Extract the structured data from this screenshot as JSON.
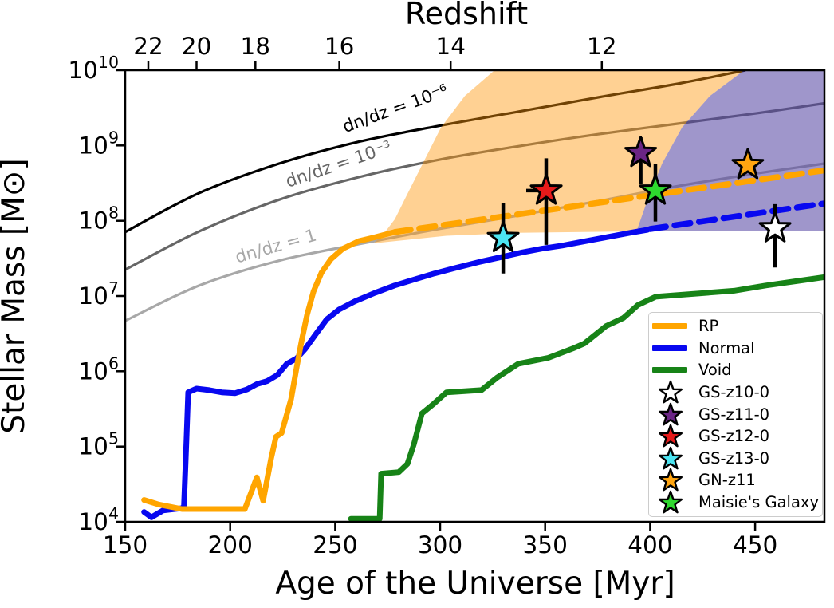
{
  "chart_data": {
    "type": "line",
    "xlabel": "Age of the Universe [Myr]",
    "ylabel": "Stellar Mass [M⊙]",
    "xlim": [
      150,
      483
    ],
    "ylog_lim": [
      4,
      10
    ],
    "x_ticks": [
      150,
      200,
      250,
      300,
      350,
      400,
      450
    ],
    "y_tick_exponents": [
      "4",
      "5",
      "6",
      "7",
      "8",
      "9",
      "10"
    ],
    "top_axis": {
      "label": "Redshift",
      "ticks": [
        {
          "z": "22",
          "age": 161
        },
        {
          "z": "20",
          "age": 184
        },
        {
          "z": "18",
          "age": 212
        },
        {
          "z": "16",
          "age": 252
        },
        {
          "z": "14",
          "age": 305
        },
        {
          "z": "12",
          "age": 377
        }
      ]
    },
    "regions": [
      {
        "id": "rp-extrapolation-band",
        "color": "rgba(255,150,10,0.44)",
        "points": [
          [
            268.2,
            7.7
          ],
          [
            272.7,
            7.81
          ],
          [
            278.4,
            8.02
          ],
          [
            284.1,
            8.34
          ],
          [
            291.7,
            8.76
          ],
          [
            300.4,
            9.24
          ],
          [
            311.8,
            9.66
          ],
          [
            325.9,
            10.0
          ],
          [
            444.8,
            10.0
          ],
          [
            428.5,
            9.66
          ],
          [
            415.2,
            9.24
          ],
          [
            405.7,
            8.76
          ],
          [
            398.8,
            8.28
          ],
          [
            393.5,
            7.86
          ],
          [
            337.2,
            7.84
          ],
          [
            303.0,
            7.8
          ]
        ]
      },
      {
        "id": "normal-extrapolation-band",
        "color": "rgba(80,64,160,0.55)",
        "points": [
          [
            444.8,
            10.0
          ],
          [
            483,
            10.0
          ],
          [
            483,
            7.86
          ],
          [
            393.5,
            7.86
          ],
          [
            398.8,
            8.28
          ],
          [
            405.7,
            8.76
          ],
          [
            415.2,
            9.24
          ],
          [
            428.5,
            9.66
          ]
        ]
      }
    ],
    "halo_curves": [
      {
        "id": "dndz-1e-6",
        "label": "dn/dz = 10⁻⁶",
        "color": "#000000",
        "label_age": 279.5,
        "label_logM": 9.42,
        "label_rot": -20,
        "points": [
          [
            150,
            7.85
          ],
          [
            185.3,
            8.37
          ],
          [
            223.3,
            8.76
          ],
          [
            261.3,
            9.05
          ],
          [
            299.2,
            9.26
          ],
          [
            337.2,
            9.45
          ],
          [
            375.2,
            9.64
          ],
          [
            413.1,
            9.82
          ],
          [
            445.4,
            10.0
          ]
        ]
      },
      {
        "id": "dndz-1e-3",
        "label": "dn/dz = 10⁻³",
        "color": "#666666",
        "label_age": 252.5,
        "label_logM": 8.68,
        "label_rot": -19,
        "points": [
          [
            150,
            7.35
          ],
          [
            185.3,
            7.86
          ],
          [
            223.3,
            8.28
          ],
          [
            261.3,
            8.58
          ],
          [
            299.2,
            8.81
          ],
          [
            337.2,
            8.99
          ],
          [
            375.2,
            9.15
          ],
          [
            413.1,
            9.29
          ],
          [
            451.1,
            9.43
          ],
          [
            483,
            9.56
          ]
        ]
      },
      {
        "id": "dndz-1",
        "label": "dn/dz = 1",
        "color": "#A8A8A8",
        "label_age": 222.5,
        "label_logM": 7.59,
        "label_rot": -16,
        "points": [
          [
            150,
            6.67
          ],
          [
            185.3,
            7.14
          ],
          [
            223.3,
            7.47
          ],
          [
            261.3,
            7.69
          ],
          [
            299.2,
            7.89
          ],
          [
            337.2,
            8.07
          ],
          [
            375.2,
            8.26
          ],
          [
            413.1,
            8.46
          ],
          [
            451.1,
            8.63
          ],
          [
            483,
            8.76
          ]
        ]
      }
    ],
    "series": [
      {
        "id": "void",
        "name": "Void",
        "color": "#178317",
        "style": "solid",
        "points": [
          [
            257.5,
            4.04
          ],
          [
            271.2,
            4.04
          ],
          [
            271.9,
            4.64
          ],
          [
            280.3,
            4.66
          ],
          [
            284.4,
            4.77
          ],
          [
            287.5,
            5.03
          ],
          [
            291.3,
            5.44
          ],
          [
            297.0,
            5.57
          ],
          [
            303.0,
            5.72
          ],
          [
            319.7,
            5.75
          ],
          [
            327.3,
            5.92
          ],
          [
            337.2,
            6.1
          ],
          [
            351.6,
            6.18
          ],
          [
            363.8,
            6.31
          ],
          [
            368.7,
            6.37
          ],
          [
            379.0,
            6.6
          ],
          [
            387.3,
            6.71
          ],
          [
            394.2,
            6.88
          ],
          [
            402.6,
            6.99
          ],
          [
            420.9,
            7.03
          ],
          [
            439.9,
            7.07
          ],
          [
            455.1,
            7.14
          ],
          [
            470.3,
            7.2
          ],
          [
            483,
            7.25
          ]
        ]
      },
      {
        "id": "normal",
        "name": "Normal",
        "color": "#0808F0",
        "style": "solid",
        "points": [
          [
            159,
            4.13
          ],
          [
            162.5,
            4.06
          ],
          [
            168,
            4.15
          ],
          [
            177,
            4.18
          ],
          [
            178,
            4.2
          ],
          [
            179.2,
            5.1
          ],
          [
            180,
            5.72
          ],
          [
            184,
            5.77
          ],
          [
            190,
            5.75
          ],
          [
            196,
            5.72
          ],
          [
            202.4,
            5.71
          ],
          [
            208,
            5.76
          ],
          [
            212.7,
            5.83
          ],
          [
            217.6,
            5.87
          ],
          [
            222.5,
            5.95
          ],
          [
            227,
            6.1
          ],
          [
            231.6,
            6.17
          ],
          [
            235.8,
            6.3
          ],
          [
            240.4,
            6.48
          ],
          [
            246,
            6.69
          ],
          [
            251.8,
            6.82
          ],
          [
            259.4,
            6.93
          ],
          [
            268.8,
            7.04
          ],
          [
            278.3,
            7.14
          ],
          [
            287.8,
            7.22
          ],
          [
            297.3,
            7.3
          ],
          [
            306.8,
            7.37
          ],
          [
            318.2,
            7.45
          ],
          [
            329.6,
            7.52
          ],
          [
            339.1,
            7.58
          ],
          [
            348.6,
            7.63
          ],
          [
            358.1,
            7.67
          ],
          [
            367.6,
            7.72
          ],
          [
            379.0,
            7.78
          ],
          [
            390.4,
            7.84
          ],
          [
            398.8,
            7.88
          ]
        ]
      },
      {
        "id": "rp",
        "name": "RP",
        "color": "#FFA500",
        "style": "solid",
        "points": [
          [
            159,
            4.29
          ],
          [
            166,
            4.23
          ],
          [
            177,
            4.17
          ],
          [
            207,
            4.17
          ],
          [
            212.7,
            4.59
          ],
          [
            215.7,
            4.28
          ],
          [
            219.5,
            4.84
          ],
          [
            221.8,
            5.13
          ],
          [
            224.5,
            5.18
          ],
          [
            226.4,
            5.37
          ],
          [
            229,
            5.63
          ],
          [
            231.7,
            6.06
          ],
          [
            234,
            6.4
          ],
          [
            236.6,
            6.75
          ],
          [
            239.7,
            7.06
          ],
          [
            243.5,
            7.31
          ],
          [
            248,
            7.49
          ],
          [
            253.7,
            7.63
          ],
          [
            261.3,
            7.73
          ],
          [
            268.9,
            7.78
          ],
          [
            278.4,
            7.85
          ]
        ]
      },
      {
        "id": "normal-extrapolation",
        "name": "Normal extrapolation",
        "color": "#0808F0",
        "style": "dashed",
        "points": [
          [
            400,
            7.89
          ],
          [
            483,
            8.23
          ]
        ]
      },
      {
        "id": "rp-extrapolation",
        "name": "RP extrapolation",
        "color": "#FFA500",
        "style": "dashed",
        "points": [
          [
            278.4,
            7.85
          ],
          [
            483,
            8.67
          ]
        ]
      }
    ],
    "stars": [
      {
        "name": "GS-z13-0",
        "color": "#4CE5F2",
        "age": 330,
        "logM": 7.77,
        "err_logM": [
          7.3,
          8.23
        ]
      },
      {
        "name": "GS-z12-0",
        "color": "#E61A1A",
        "age": 350.5,
        "logM": 8.4,
        "err_logM": [
          7.68,
          8.83
        ],
        "xerr_left_age": 341
      },
      {
        "name": "GS-z11-0",
        "color": "#6B2585",
        "age": 395.5,
        "logM": 8.9,
        "err_logM": [
          8.49,
          9.11
        ]
      },
      {
        "name": "Maisie's Galaxy",
        "color": "#2ED92E",
        "age": 402.5,
        "logM": 8.4,
        "err_logM": [
          7.99,
          8.75
        ]
      },
      {
        "name": "GN-z11",
        "color": "#FFA511",
        "age": 446.5,
        "logM": 8.74
      },
      {
        "name": "GS-z10-0",
        "color": "#FFFFFF",
        "age": 459.5,
        "logM": 7.9,
        "err_logM": [
          7.38,
          8.22
        ]
      }
    ],
    "legend": {
      "entries": [
        {
          "type": "line",
          "label": "RP",
          "color": "#FFA500"
        },
        {
          "type": "line",
          "label": "Normal",
          "color": "#0808F0"
        },
        {
          "type": "line",
          "label": "Void",
          "color": "#178317"
        },
        {
          "type": "star",
          "label": "GS-z10-0",
          "color": "#FFFFFF"
        },
        {
          "type": "star",
          "label": "GS-z11-0",
          "color": "#6B2585"
        },
        {
          "type": "star",
          "label": "GS-z12-0",
          "color": "#E61A1A"
        },
        {
          "type": "star",
          "label": "GS-z13-0",
          "color": "#4CE5F2"
        },
        {
          "type": "star",
          "label": "GN-z11",
          "color": "#FFA511"
        },
        {
          "type": "star",
          "label": "Maisie's Galaxy",
          "color": "#2ED92E"
        }
      ]
    }
  }
}
